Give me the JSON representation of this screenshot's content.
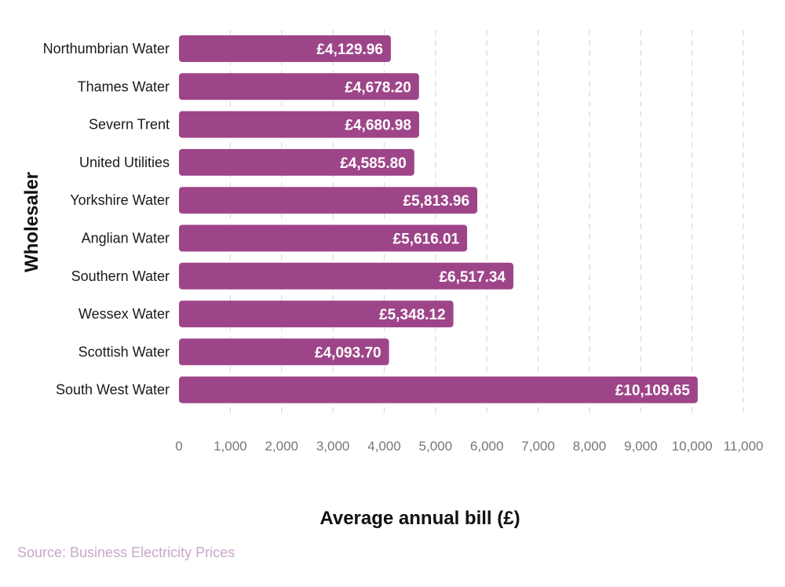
{
  "chart_data": {
    "type": "bar",
    "orientation": "horizontal",
    "categories": [
      "Northumbrian Water",
      "Thames Water",
      "Severn Trent",
      "United Utilities",
      "Yorkshire Water",
      "Anglian Water",
      "Southern Water",
      "Wessex Water",
      "Scottish Water",
      "South West Water"
    ],
    "values": [
      4129.96,
      4678.2,
      4680.98,
      4585.8,
      5813.96,
      5616.01,
      6517.34,
      5348.12,
      4093.7,
      10109.65
    ],
    "value_labels": [
      "£4,129.96",
      "£4,678.20",
      "£4,680.98",
      "£4,585.80",
      "£5,813.96",
      "£5,616.01",
      "£6,517.34",
      "£5,348.12",
      "£4,093.70",
      "£10,109.65"
    ],
    "xlabel": "Average annual bill (£)",
    "ylabel": "Wholesaler",
    "xlim": [
      0,
      11000
    ],
    "xticks": [
      0,
      1000,
      2000,
      3000,
      4000,
      5000,
      6000,
      7000,
      8000,
      9000,
      10000,
      11000
    ],
    "xtick_labels": [
      "0",
      "1,000",
      "2,000",
      "3,000",
      "4,000",
      "5,000",
      "6,000",
      "7,000",
      "8,000",
      "9,000",
      "10,000",
      "11,000"
    ],
    "grid": "vertical dashed",
    "bar_color": "#9e4589",
    "grid_color": "#d9d9d9"
  },
  "source": "Source: Business Electricity Prices"
}
